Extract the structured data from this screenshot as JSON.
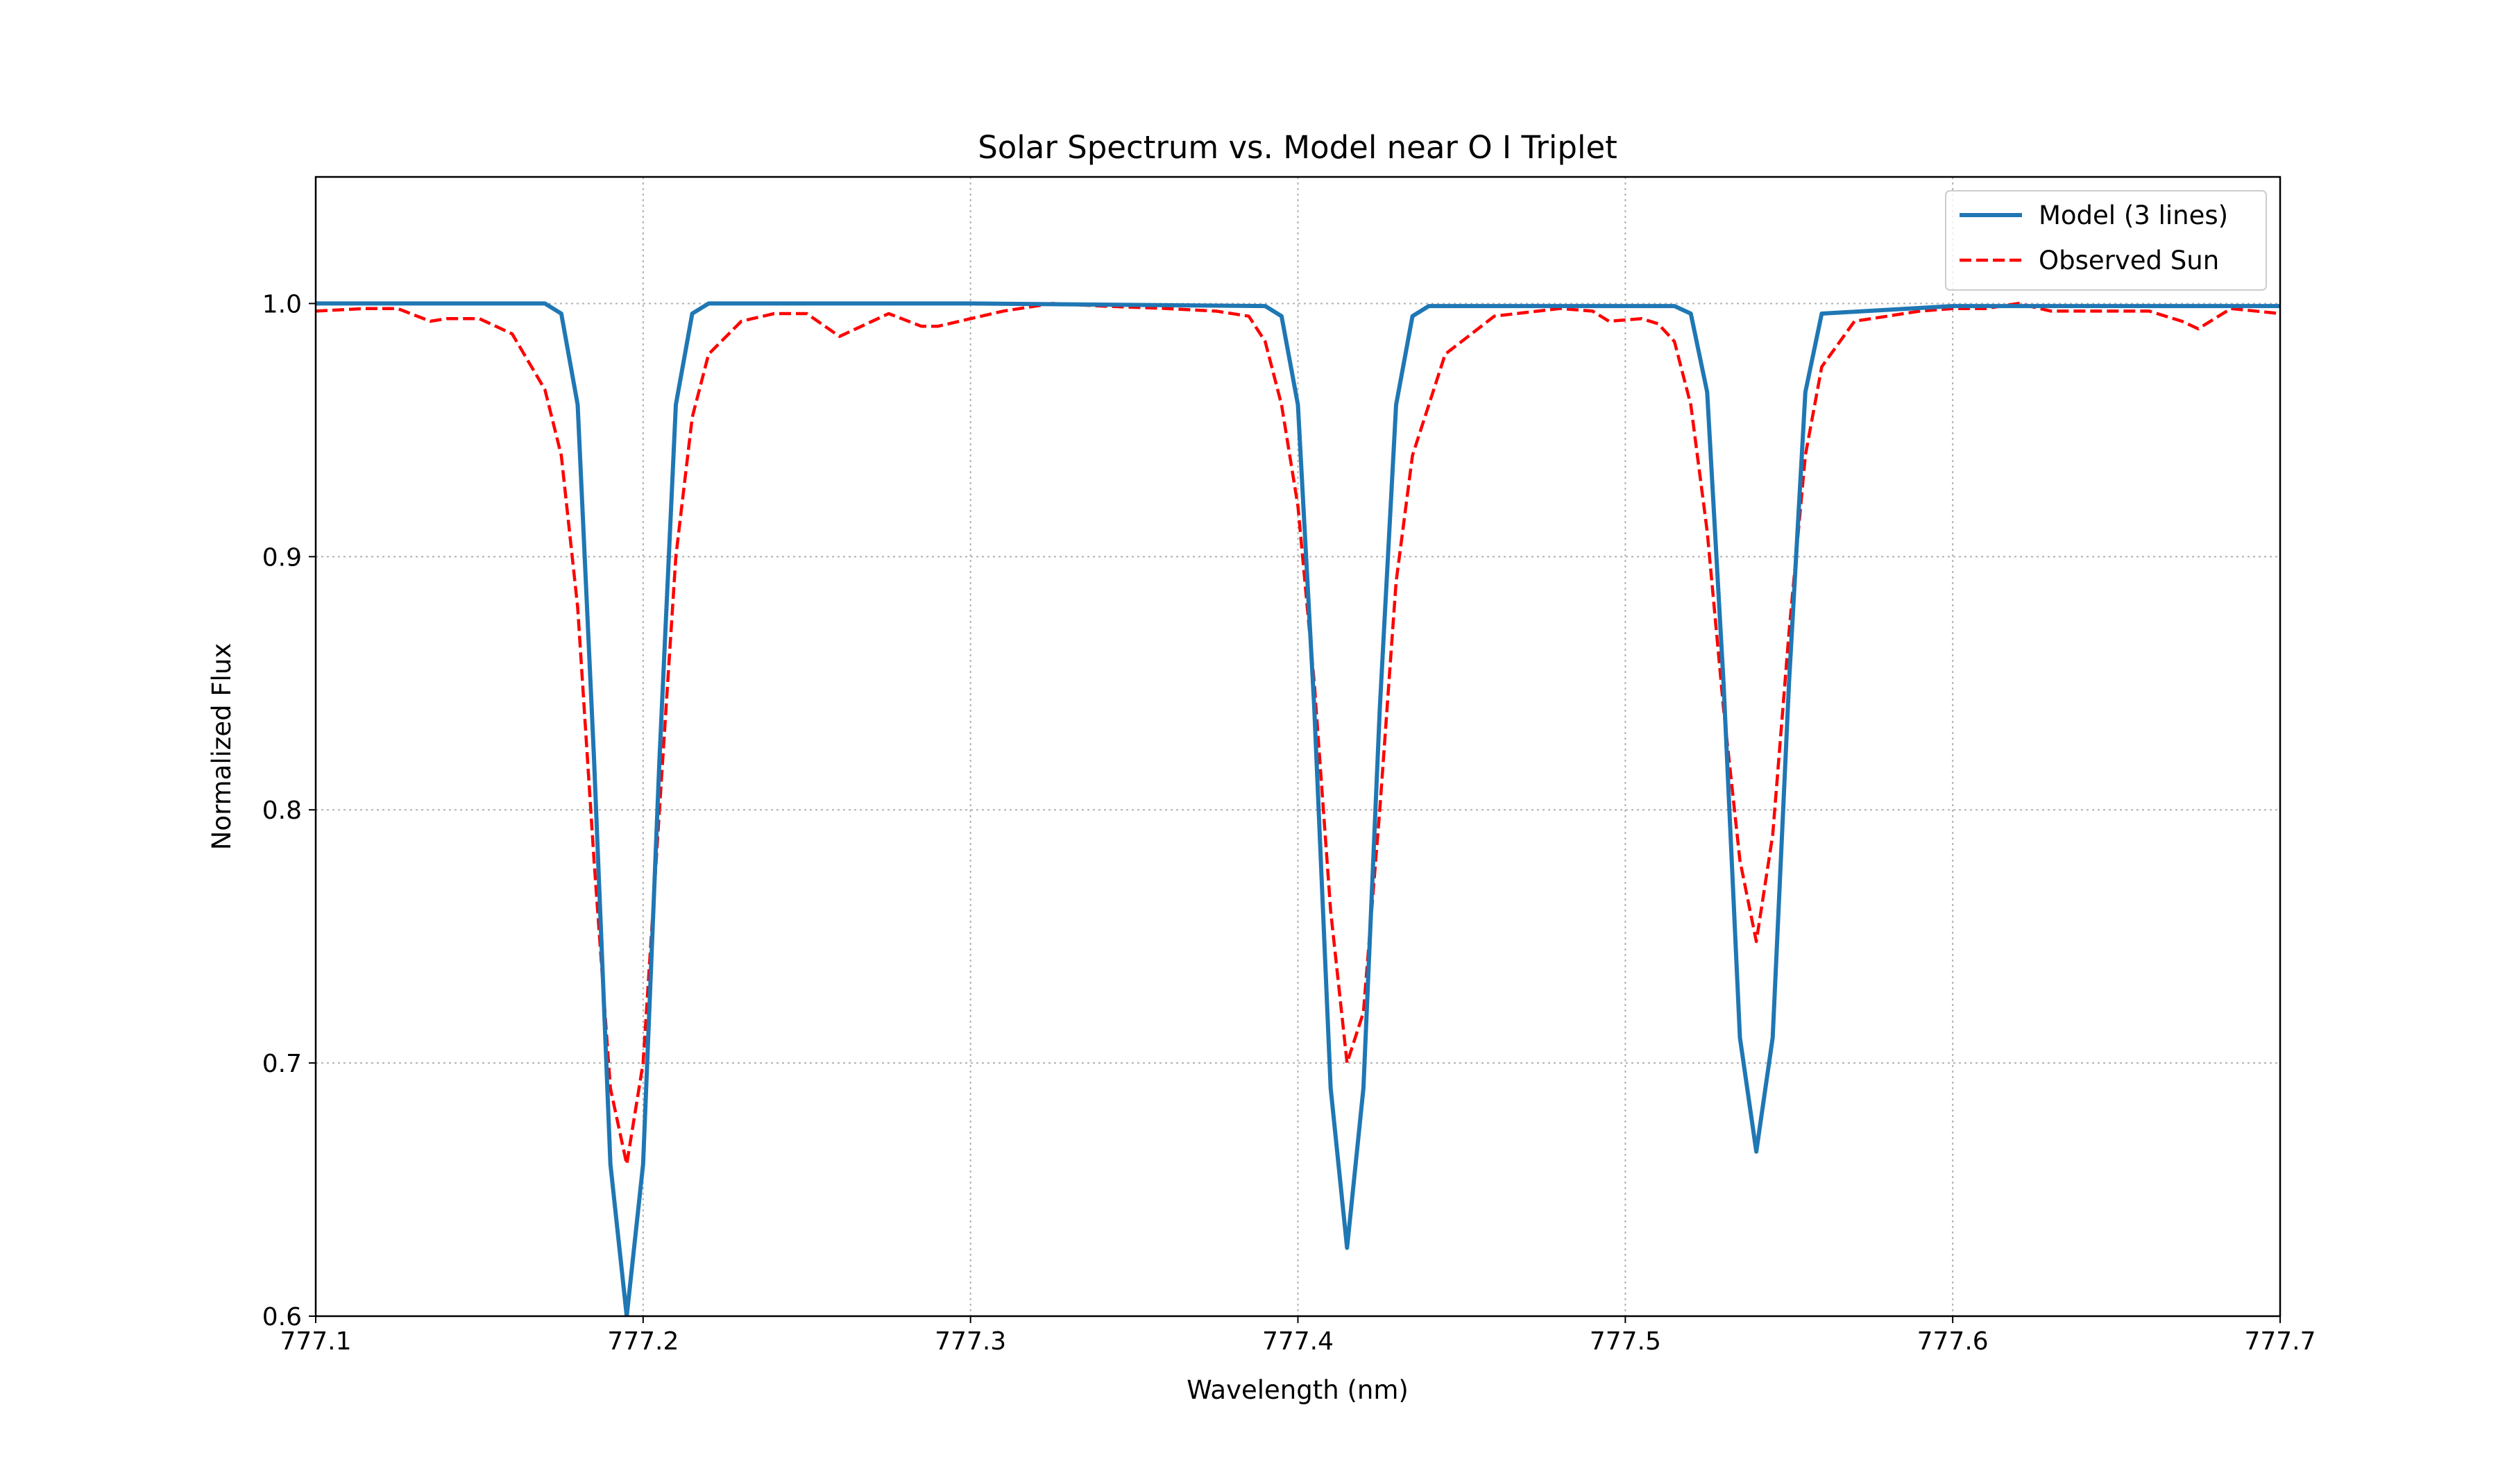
{
  "chart_data": {
    "type": "line",
    "title": "Solar Spectrum vs. Model near O I Triplet",
    "xlabel": "Wavelength (nm)",
    "ylabel": "Normalized Flux",
    "xlim": [
      777.1,
      777.7
    ],
    "ylim": [
      0.6,
      1.05
    ],
    "x_ticks": [
      "777.1",
      "777.2",
      "777.3",
      "777.4",
      "777.5",
      "777.6",
      "777.7"
    ],
    "y_ticks": [
      "0.6",
      "0.7",
      "0.8",
      "0.9",
      "1.0"
    ],
    "grid": true,
    "legend_position": "top-right",
    "series": [
      {
        "name": "Model (3 lines)",
        "color": "#1f77b4",
        "style": "solid",
        "x": [
          777.1,
          777.15,
          777.17,
          777.175,
          777.18,
          777.185,
          777.19,
          777.195,
          777.2,
          777.205,
          777.21,
          777.215,
          777.22,
          777.3,
          777.39,
          777.395,
          777.4,
          777.405,
          777.41,
          777.415,
          777.42,
          777.425,
          777.43,
          777.435,
          777.44,
          777.5,
          777.515,
          777.52,
          777.525,
          777.53,
          777.535,
          777.54,
          777.545,
          777.55,
          777.555,
          777.56,
          777.6,
          777.7
        ],
        "y": [
          1.0,
          1.0,
          1.0,
          0.996,
          0.96,
          0.82,
          0.66,
          0.6,
          0.66,
          0.82,
          0.96,
          0.996,
          1.0,
          1.0,
          0.999,
          0.995,
          0.96,
          0.84,
          0.69,
          0.627,
          0.69,
          0.84,
          0.96,
          0.995,
          0.999,
          0.999,
          0.999,
          0.996,
          0.965,
          0.85,
          0.71,
          0.665,
          0.71,
          0.85,
          0.965,
          0.996,
          0.999,
          0.999
        ]
      },
      {
        "name": "Observed Sun",
        "color": "#ff0000",
        "style": "dashed",
        "x": [
          777.1,
          777.115,
          777.125,
          777.135,
          777.14,
          777.15,
          777.16,
          777.17,
          777.175,
          777.18,
          777.185,
          777.19,
          777.195,
          777.2,
          777.205,
          777.21,
          777.215,
          777.22,
          777.23,
          777.24,
          777.25,
          777.26,
          777.275,
          777.285,
          777.29,
          777.3,
          777.31,
          777.325,
          777.34,
          777.36,
          777.375,
          777.385,
          777.39,
          777.395,
          777.4,
          777.405,
          777.41,
          777.415,
          777.42,
          777.425,
          777.43,
          777.435,
          777.445,
          777.46,
          777.48,
          777.49,
          777.495,
          777.505,
          777.51,
          777.515,
          777.52,
          777.525,
          777.53,
          777.535,
          777.54,
          777.545,
          777.55,
          777.555,
          777.56,
          777.57,
          777.59,
          777.6,
          777.61,
          777.62,
          777.63,
          777.645,
          777.66,
          777.67,
          777.675,
          777.685,
          777.7
        ],
        "y": [
          0.997,
          0.998,
          0.998,
          0.993,
          0.994,
          0.994,
          0.988,
          0.966,
          0.94,
          0.88,
          0.78,
          0.69,
          0.66,
          0.7,
          0.8,
          0.9,
          0.955,
          0.98,
          0.993,
          0.996,
          0.996,
          0.987,
          0.996,
          0.991,
          0.991,
          0.994,
          0.997,
          1.0,
          0.999,
          0.998,
          0.997,
          0.995,
          0.985,
          0.96,
          0.92,
          0.85,
          0.76,
          0.7,
          0.72,
          0.8,
          0.89,
          0.94,
          0.98,
          0.995,
          0.998,
          0.997,
          0.993,
          0.994,
          0.992,
          0.985,
          0.96,
          0.91,
          0.84,
          0.78,
          0.748,
          0.79,
          0.87,
          0.94,
          0.975,
          0.993,
          0.997,
          0.998,
          0.998,
          1.0,
          0.997,
          0.997,
          0.997,
          0.993,
          0.99,
          0.998,
          0.996
        ]
      }
    ]
  }
}
